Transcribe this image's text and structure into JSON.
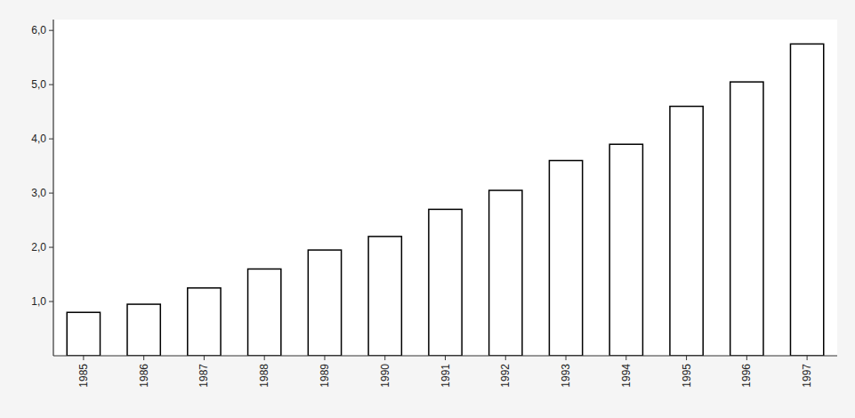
{
  "chart_data": {
    "type": "bar",
    "categories": [
      "1985",
      "1986",
      "1987",
      "1988",
      "1989",
      "1990",
      "1991",
      "1992",
      "1993",
      "1994",
      "1995",
      "1996",
      "1997"
    ],
    "values": [
      0.8,
      0.95,
      1.25,
      1.6,
      1.95,
      2.2,
      2.7,
      3.05,
      3.6,
      3.9,
      4.6,
      5.05,
      5.75
    ],
    "color": "#ffffff",
    "ylim": [
      0,
      6.2
    ],
    "yticks": [
      {
        "value": 1.0,
        "label": "1,0"
      },
      {
        "value": 2.0,
        "label": "2,0"
      },
      {
        "value": 3.0,
        "label": "3,0"
      },
      {
        "value": 4.0,
        "label": "4,0"
      },
      {
        "value": 5.0,
        "label": "5,0"
      },
      {
        "value": 6.0,
        "label": "6,0"
      }
    ],
    "grid": false
  }
}
